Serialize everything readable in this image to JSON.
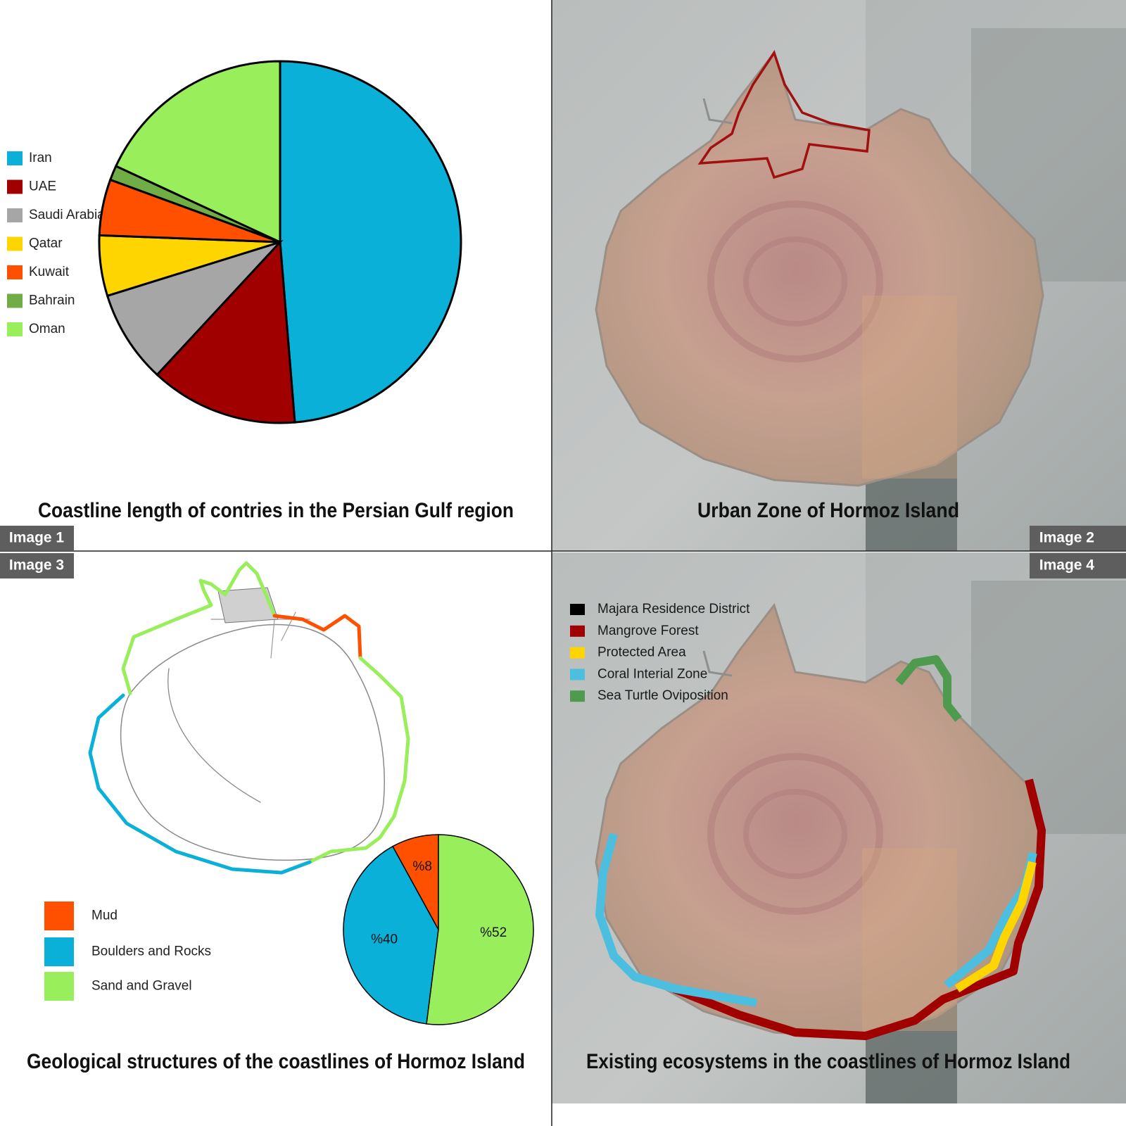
{
  "chart_data": [
    {
      "type": "pie",
      "title": "Coastline length of contries in the Persian Gulf region",
      "categories": [
        "Iran",
        "UAE",
        "Saudi Arabia",
        "Qatar",
        "Kuwait",
        "Bahrain",
        "Oman"
      ],
      "values": [
        48.7,
        13.2,
        8.3,
        5.4,
        5.0,
        1.3,
        18.1
      ],
      "colors": [
        "#0ab0d8",
        "#a00000",
        "#a6a6a6",
        "#ffd500",
        "#ff5000",
        "#70ad47",
        "#99ee5c"
      ],
      "direction": "clockwise"
    },
    {
      "type": "pie",
      "title": "Geological structures of the coastlines of Hormoz Island",
      "categories": [
        "Mud",
        "Boulders and Rocks",
        "Sand and Gravel"
      ],
      "values": [
        8,
        40,
        52
      ],
      "value_labels": [
        "%8",
        "%40",
        "%52"
      ],
      "colors": [
        "#ff5000",
        "#0ab0d8",
        "#99ee5c"
      ],
      "direction": "counterclockwise"
    }
  ],
  "maps": [
    {
      "title": "Urban Zone of Hormoz Island"
    },
    {
      "title": "Existing ecosystems in the coastlines of Hormoz Island",
      "legend": [
        {
          "name": "Majara Residence District",
          "color": "#000000"
        },
        {
          "name": "Mangrove Forest",
          "color": "#a00000"
        },
        {
          "name": "Protected Area",
          "color": "#ffd500"
        },
        {
          "name": "Coral Interial Zone",
          "color": "#4cbfe0"
        },
        {
          "name": "Sea Turtle Oviposition",
          "color": "#4e9a4e"
        }
      ]
    }
  ],
  "image_labels": [
    "Image 1",
    "Image 2",
    "Image 3",
    "Image 4"
  ]
}
